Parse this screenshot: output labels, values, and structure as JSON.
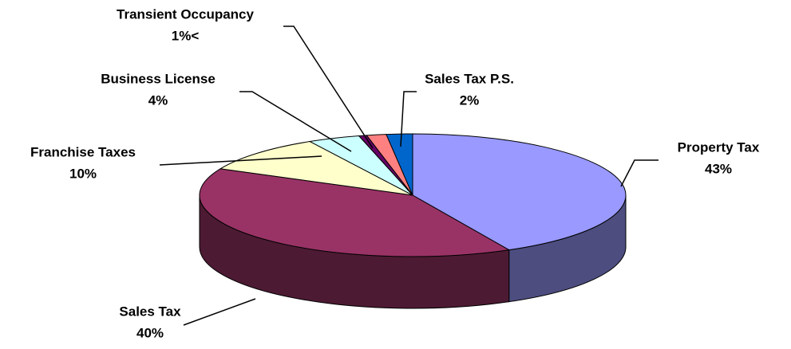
{
  "chart_data": {
    "type": "pie3d",
    "categories": [
      "Property Tax",
      "Sales Tax",
      "Franchise Taxes",
      "Business License",
      "Transient Occupancy",
      null,
      "Sales Tax P.S."
    ],
    "values": [
      43,
      40,
      10,
      4,
      0.6,
      1.5,
      2
    ],
    "value_labels": [
      "43%",
      "40%",
      "10%",
      "4%",
      "1%<",
      null,
      "2%"
    ],
    "colors": [
      "#9999ff",
      "#993366",
      "#ffffcc",
      "#ccffff",
      "#660066",
      "#ff8080",
      "#0066cc"
    ]
  }
}
